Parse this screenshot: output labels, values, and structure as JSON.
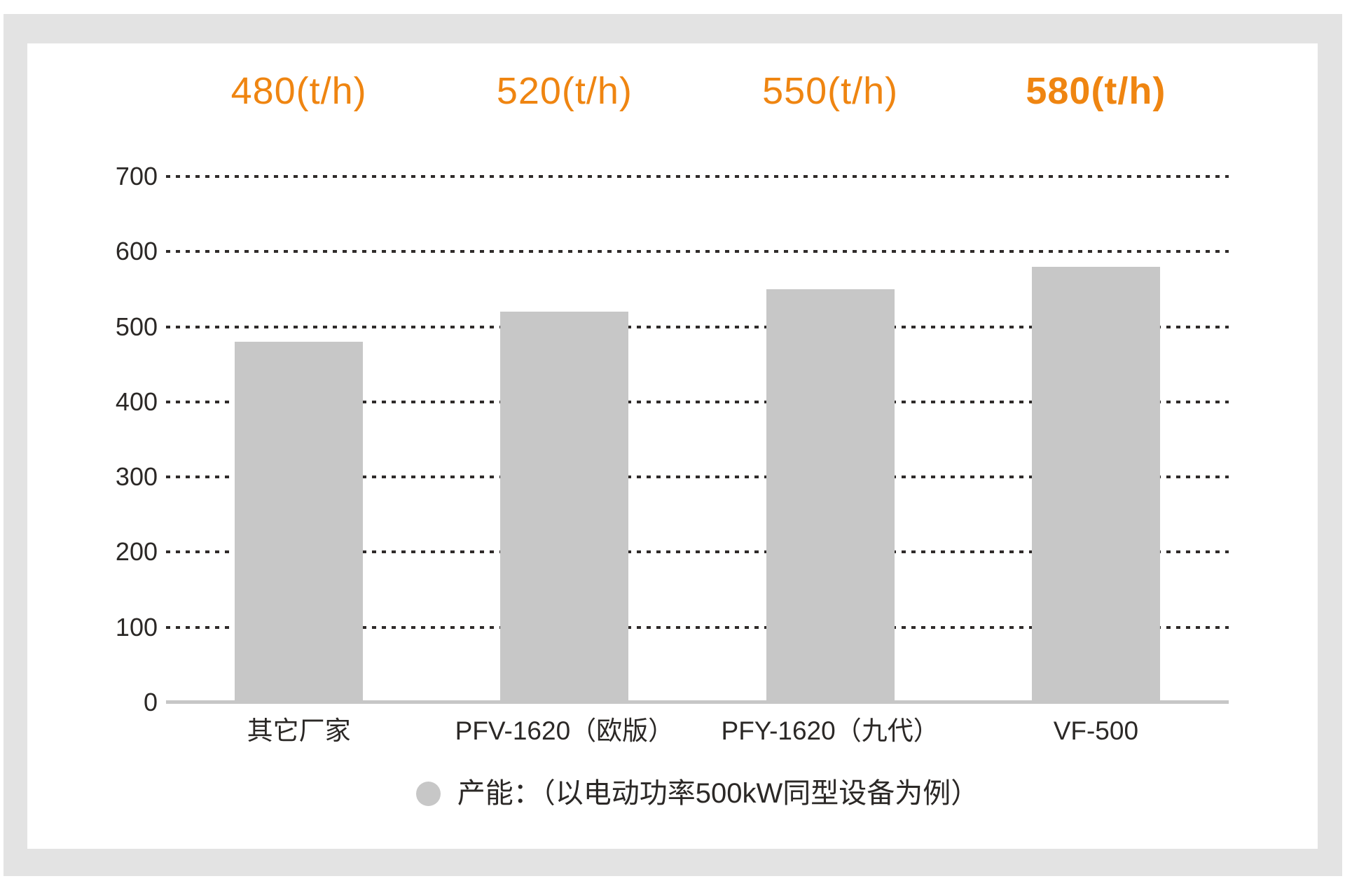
{
  "chart_data": {
    "type": "bar",
    "title": "",
    "categories": [
      "其它厂家",
      "PFV-1620（欧版）",
      "PFY-1620（九代）",
      "VF-500"
    ],
    "values": [
      480,
      520,
      550,
      580
    ],
    "bar_value_labels": [
      "480(t/h)",
      "520(t/h)",
      "550(t/h)",
      "580(t/h)"
    ],
    "value_unit": "t/h",
    "highlight_index": 3,
    "yticks": [
      0,
      100,
      200,
      300,
      400,
      500,
      600,
      700
    ],
    "ylim": [
      0,
      700
    ],
    "grid": "horizontal-dotted",
    "legend_position": "bottom-center",
    "legend_label": "产能：（以电动功率500kW同型设备为例）",
    "colors": {
      "bar": "#c7c7c7",
      "accent": "#ef8511",
      "grid": "#2f2b2a",
      "axis": "#c6c6c6",
      "text": "#2b2826",
      "frame": "#e3e3e3",
      "background": "#ffffff"
    }
  },
  "legend": {
    "label": "产能：（以电动功率500kW同型设备为例）"
  }
}
